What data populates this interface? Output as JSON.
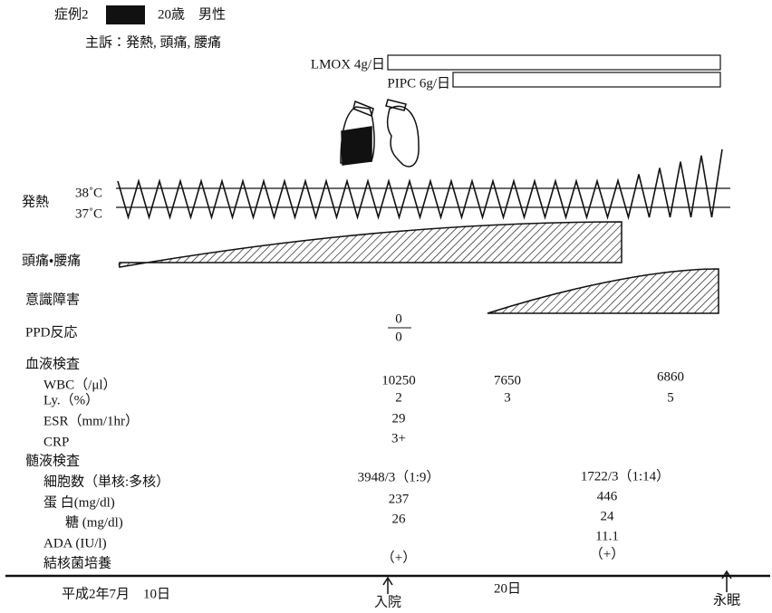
{
  "header": {
    "case": "症例2",
    "age_sex": "20歳　男性",
    "complaint": "主訴：発熱, 頭痛, 腰痛"
  },
  "drugs": [
    "LMOX  4g/日",
    "PIPC  6g/日"
  ],
  "rows": {
    "fever": "発熱",
    "temp_high": "38˚C",
    "temp_low": "37˚C",
    "pain": "頭痛・腰痛",
    "consciousness": "意識障害",
    "ppd": "PPD反応"
  },
  "ppd_result": {
    "top": "0",
    "bottom": "0"
  },
  "blood": {
    "title": "血液検査",
    "items": [
      {
        "label": "WBC（/μl）",
        "values": [
          "10250",
          "7650",
          "6860"
        ]
      },
      {
        "label": "Ly.（%）",
        "values": [
          "2",
          "3",
          "5"
        ]
      },
      {
        "label": "ESR（mm/1hr）",
        "values": [
          "29"
        ]
      },
      {
        "label": "CRP",
        "values": [
          "3+"
        ]
      }
    ]
  },
  "csf": {
    "title": "髄液検査",
    "items": [
      {
        "label": "細胞数（単核:多核）",
        "values": [
          "3948/3（1:9）",
          "1722/3（1:14）"
        ]
      },
      {
        "label": "蛋 白(mg/dl)",
        "values": [
          "237",
          "446"
        ]
      },
      {
        "label": "糖 (mg/dl)",
        "values": [
          "26",
          "24"
        ]
      },
      {
        "label": "ADA (IU/l)",
        "values": [
          "11.1"
        ]
      },
      {
        "label": "結核菌培養",
        "values": [
          "（+）",
          "（+）"
        ]
      }
    ]
  },
  "timeline": {
    "start": "平成2年7月　10日",
    "admission": "入院",
    "day20": "20日",
    "death": "永眠"
  }
}
